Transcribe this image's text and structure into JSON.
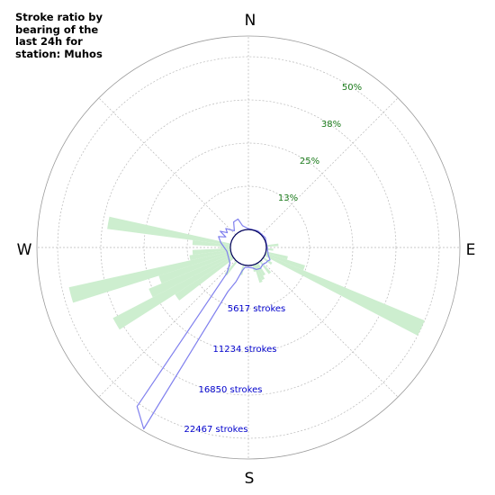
{
  "title": "Stroke ratio by\nbearing of the\nlast 24h for\nstation: Muhos",
  "chart_data": {
    "type": "polar-bar",
    "compass": {
      "north": "N",
      "east": "E",
      "south": "S",
      "west": "W"
    },
    "ratio_rings": [
      {
        "label": "13%",
        "value": 12.5
      },
      {
        "label": "25%",
        "value": 25
      },
      {
        "label": "38%",
        "value": 37.5
      },
      {
        "label": "50%",
        "value": 50
      }
    ],
    "stroke_rings": [
      {
        "label": "5617 strokes",
        "value": 5617
      },
      {
        "label": "11234 strokes",
        "value": 11234
      },
      {
        "label": "16850 strokes",
        "value": 16850
      },
      {
        "label": "22467 strokes",
        "value": 22467
      }
    ],
    "ratio_max": 56,
    "strokes_max": 25276,
    "bin_width_deg": 5,
    "ratio_bars": [
      {
        "bearing": 85,
        "value": 3.5
      },
      {
        "bearing": 95,
        "value": 2.0
      },
      {
        "bearing": 105,
        "value": 6.5
      },
      {
        "bearing": 110,
        "value": 12.0
      },
      {
        "bearing": 115,
        "value": 50.0
      },
      {
        "bearing": 125,
        "value": 3.0
      },
      {
        "bearing": 140,
        "value": 4.5
      },
      {
        "bearing": 150,
        "value": 4.0
      },
      {
        "bearing": 155,
        "value": 5.0
      },
      {
        "bearing": 160,
        "value": 5.5
      },
      {
        "bearing": 165,
        "value": 2.0
      },
      {
        "bearing": 195,
        "value": 3.0
      },
      {
        "bearing": 220,
        "value": 5.0
      },
      {
        "bearing": 235,
        "value": 20.0
      },
      {
        "bearing": 240,
        "value": 39.0
      },
      {
        "bearing": 245,
        "value": 26.0
      },
      {
        "bearing": 250,
        "value": 22.0
      },
      {
        "bearing": 255,
        "value": 48.0
      },
      {
        "bearing": 260,
        "value": 12.0
      },
      {
        "bearing": 265,
        "value": 11.0
      },
      {
        "bearing": 270,
        "value": 3.0
      },
      {
        "bearing": 275,
        "value": 11.0
      },
      {
        "bearing": 280,
        "value": 36.0
      }
    ],
    "stroke_profile": [
      {
        "bearing": 0,
        "value": 100
      },
      {
        "bearing": 30,
        "value": 150
      },
      {
        "bearing": 60,
        "value": 200
      },
      {
        "bearing": 90,
        "value": 100
      },
      {
        "bearing": 110,
        "value": 400
      },
      {
        "bearing": 120,
        "value": 900
      },
      {
        "bearing": 125,
        "value": 700
      },
      {
        "bearing": 130,
        "value": 700
      },
      {
        "bearing": 140,
        "value": 550
      },
      {
        "bearing": 150,
        "value": 800
      },
      {
        "bearing": 160,
        "value": 700
      },
      {
        "bearing": 170,
        "value": 350
      },
      {
        "bearing": 180,
        "value": 250
      },
      {
        "bearing": 190,
        "value": 300
      },
      {
        "bearing": 195,
        "value": 800
      },
      {
        "bearing": 200,
        "value": 2400
      },
      {
        "bearing": 205,
        "value": 4000
      },
      {
        "bearing": 210,
        "value": 25000
      },
      {
        "bearing": 215,
        "value": 23000
      },
      {
        "bearing": 220,
        "value": 2000
      },
      {
        "bearing": 230,
        "value": 800
      },
      {
        "bearing": 240,
        "value": 600
      },
      {
        "bearing": 260,
        "value": 500
      },
      {
        "bearing": 280,
        "value": 1300
      },
      {
        "bearing": 290,
        "value": 1800
      },
      {
        "bearing": 295,
        "value": 900
      },
      {
        "bearing": 300,
        "value": 1900
      },
      {
        "bearing": 305,
        "value": 1000
      },
      {
        "bearing": 310,
        "value": 1500
      },
      {
        "bearing": 320,
        "value": 500
      },
      {
        "bearing": 330,
        "value": 1500
      },
      {
        "bearing": 340,
        "value": 1600
      },
      {
        "bearing": 345,
        "value": 600
      },
      {
        "bearing": 350,
        "value": 400
      }
    ],
    "colors": {
      "ratio_bars": "#cdeecf",
      "stroke_line": "#8080ee",
      "ratio_labels": "#1a7a1a",
      "stroke_labels": "#0000cc",
      "grid": "#b8b8b8",
      "center_outline": "#00005a"
    }
  }
}
